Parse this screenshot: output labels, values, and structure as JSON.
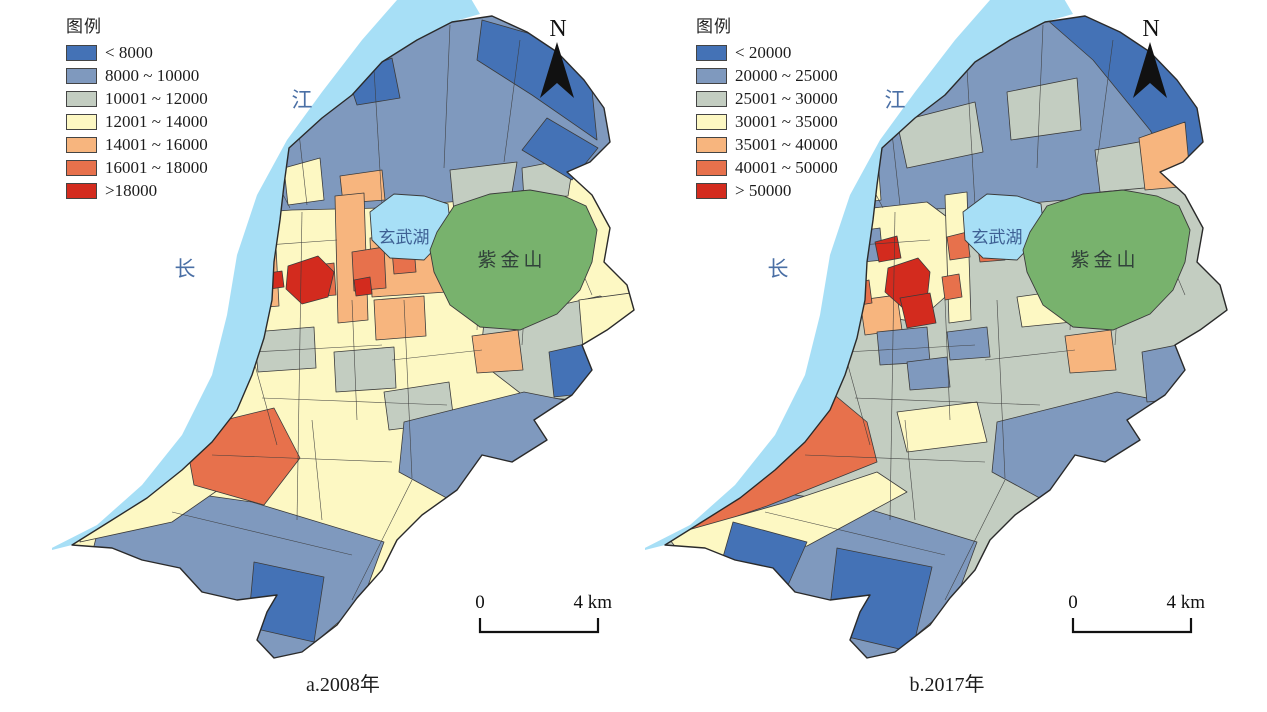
{
  "palette": {
    "class_colors": [
      "#4472B6",
      "#7F99BE",
      "#C3CDC1",
      "#FDF8C3",
      "#F7B57E",
      "#E7714C",
      "#D32B1E"
    ],
    "water": "#A7DFF6",
    "mountain": "#78B26D",
    "boundary": "#2A2A2A",
    "district_line": "#3B3B3B",
    "water_label_color": "#4A6FA5",
    "lake_label_color": "#3D5F93",
    "mountain_label_color": "#31413A",
    "north_arrow_color": "#111111",
    "scale_bar_color": "#111111"
  },
  "panels": [
    {
      "legend": {
        "title": "图例",
        "items": [
          {
            "label": "< 8000",
            "color": "#4472B6"
          },
          {
            "label": "8000 ~ 10000",
            "color": "#7F99BE"
          },
          {
            "label": "10001 ~ 12000",
            "color": "#C3CDC1"
          },
          {
            "label": "12001 ~ 14000",
            "color": "#FDF8C3"
          },
          {
            "label": "14001 ~ 16000",
            "color": "#F7B57E"
          },
          {
            "label": "16001 ~ 18000",
            "color": "#E7714C"
          },
          {
            "label": ">18000",
            "color": "#D32B1E"
          }
        ]
      },
      "caption": "a.2008年",
      "north_label": "N",
      "scale": {
        "zero": "0",
        "end": "4 km"
      },
      "map_labels": {
        "river_top": "江",
        "river_left": "长",
        "lake": "玄武湖",
        "mountain": "紫金山"
      }
    },
    {
      "legend": {
        "title": "图例",
        "items": [
          {
            "label": "< 20000",
            "color": "#4472B6"
          },
          {
            "label": "20000 ~ 25000",
            "color": "#7F99BE"
          },
          {
            "label": "25001 ~ 30000",
            "color": "#C3CDC1"
          },
          {
            "label": "30001 ~ 35000",
            "color": "#FDF8C3"
          },
          {
            "label": "35001 ~ 40000",
            "color": "#F7B57E"
          },
          {
            "label": "40001 ~ 50000",
            "color": "#E7714C"
          },
          {
            "label": "> 50000",
            "color": "#D32B1E"
          }
        ]
      },
      "caption": "b.2017年",
      "north_label": "N",
      "scale": {
        "zero": "0",
        "end": "4 km"
      },
      "map_labels": {
        "river_top": "江",
        "river_left": "长",
        "lake": "玄武湖",
        "mountain": "紫金山"
      }
    }
  ]
}
